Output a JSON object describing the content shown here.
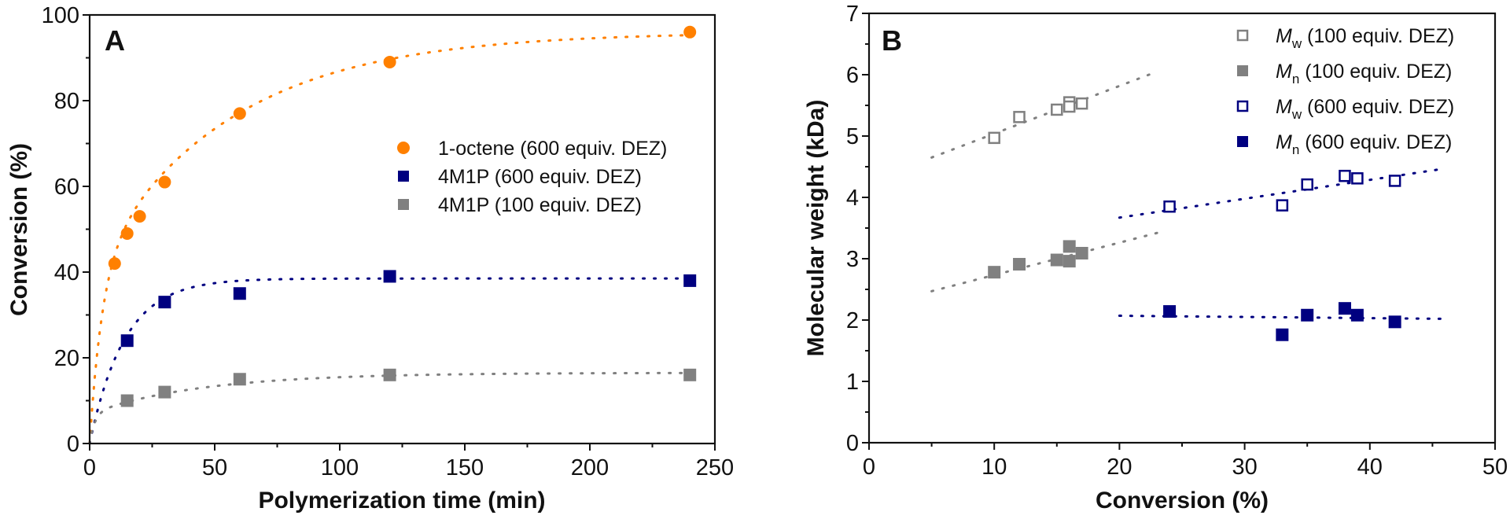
{
  "chart_data": [
    {
      "type": "scatter",
      "panel_label": "A",
      "title": "",
      "xlabel": "Polymerization time (min)",
      "ylabel": "Conversion (%)",
      "xlim": [
        0,
        250
      ],
      "ylim": [
        0,
        100
      ],
      "xticks": [
        0,
        50,
        100,
        150,
        200,
        250
      ],
      "yticks": [
        0,
        20,
        40,
        60,
        80,
        100
      ],
      "x_minor_step": 25,
      "y_minor_step": 10,
      "grid": false,
      "legend_position": "center-right",
      "series": [
        {
          "name": "1-octene (600 equiv. DEZ)",
          "marker": "circle",
          "color": "#FF8000",
          "x": [
            10,
            15,
            20,
            30,
            60,
            120,
            240
          ],
          "y": [
            42,
            49,
            53,
            61,
            77,
            89,
            96
          ],
          "fit": {
            "style": "dotted",
            "model": "a*(1-exp(-t/t1))+b*(1-exp(-t/t2))",
            "a": 40,
            "t1": 5,
            "b": 56,
            "t2": 55
          }
        },
        {
          "name": "4M1P (600 equiv. DEZ)",
          "marker": "square",
          "color": "#000080",
          "x": [
            15,
            30,
            60,
            120,
            240
          ],
          "y": [
            24,
            33,
            35,
            39,
            38
          ],
          "fit": {
            "style": "dotted",
            "model": "a*(1-exp(-t/t1))+b*(1-exp(-t/t2))",
            "a": 38.5,
            "t1": 14,
            "b": 0,
            "t2": 1
          }
        },
        {
          "name": "4M1P (100 equiv. DEZ)",
          "marker": "square",
          "color": "#808080",
          "x": [
            15,
            30,
            60,
            120,
            240
          ],
          "y": [
            10,
            12,
            15,
            16,
            16
          ],
          "fit": {
            "style": "dotted",
            "model": "a*(1-exp(-t/t1))+b*(1-exp(-t/t2))",
            "a": 7,
            "t1": 2,
            "b": 9.5,
            "t2": 45
          }
        }
      ]
    },
    {
      "type": "scatter",
      "panel_label": "B",
      "title": "",
      "xlabel": "Conversion (%)",
      "ylabel": "Molecular weight (kDa)",
      "xlim": [
        0,
        50
      ],
      "ylim": [
        0,
        7
      ],
      "xticks": [
        0,
        10,
        20,
        30,
        40,
        50
      ],
      "yticks": [
        0,
        1,
        2,
        3,
        4,
        5,
        6,
        7
      ],
      "x_minor_step": 5,
      "y_minor_step": 0.5,
      "grid": false,
      "legend_position": "top-right",
      "series": [
        {
          "name_main": "M",
          "name_sub": "w",
          "name_rest": " (100 equiv. DEZ)",
          "marker": "open-square",
          "color": "#808080",
          "x": [
            10,
            12,
            15,
            16,
            16,
            17
          ],
          "y": [
            4.97,
            5.31,
            5.43,
            5.55,
            5.48,
            5.53
          ],
          "fit": {
            "style": "dotted",
            "x": [
              5,
              23
            ],
            "y": [
              4.65,
              6.05
            ]
          }
        },
        {
          "name_main": "M",
          "name_sub": "n",
          "name_rest": " (100 equiv. DEZ)",
          "marker": "square",
          "color": "#808080",
          "x": [
            10,
            12,
            15,
            16,
            16,
            17
          ],
          "y": [
            2.78,
            2.91,
            2.98,
            3.2,
            2.96,
            3.09
          ],
          "fit": {
            "style": "dotted",
            "x": [
              5,
              23
            ],
            "y": [
              2.47,
              3.42
            ]
          }
        },
        {
          "name_main": "M",
          "name_sub": "w",
          "name_rest": " (600 equiv. DEZ)",
          "marker": "open-square",
          "color": "#000080",
          "x": [
            24,
            33,
            35,
            38,
            39,
            42
          ],
          "y": [
            3.85,
            3.87,
            4.21,
            4.35,
            4.31,
            4.27
          ],
          "fit": {
            "style": "dotted",
            "x": [
              20,
              46
            ],
            "y": [
              3.67,
              4.47
            ]
          }
        },
        {
          "name_main": "M",
          "name_sub": "n",
          "name_rest": " (600 equiv. DEZ)",
          "marker": "square",
          "color": "#000080",
          "x": [
            24,
            33,
            35,
            38,
            39,
            42
          ],
          "y": [
            2.14,
            1.76,
            2.08,
            2.19,
            2.08,
            1.97
          ],
          "fit": {
            "style": "dotted",
            "x": [
              20,
              46
            ],
            "y": [
              2.07,
              2.02
            ]
          }
        }
      ]
    }
  ]
}
